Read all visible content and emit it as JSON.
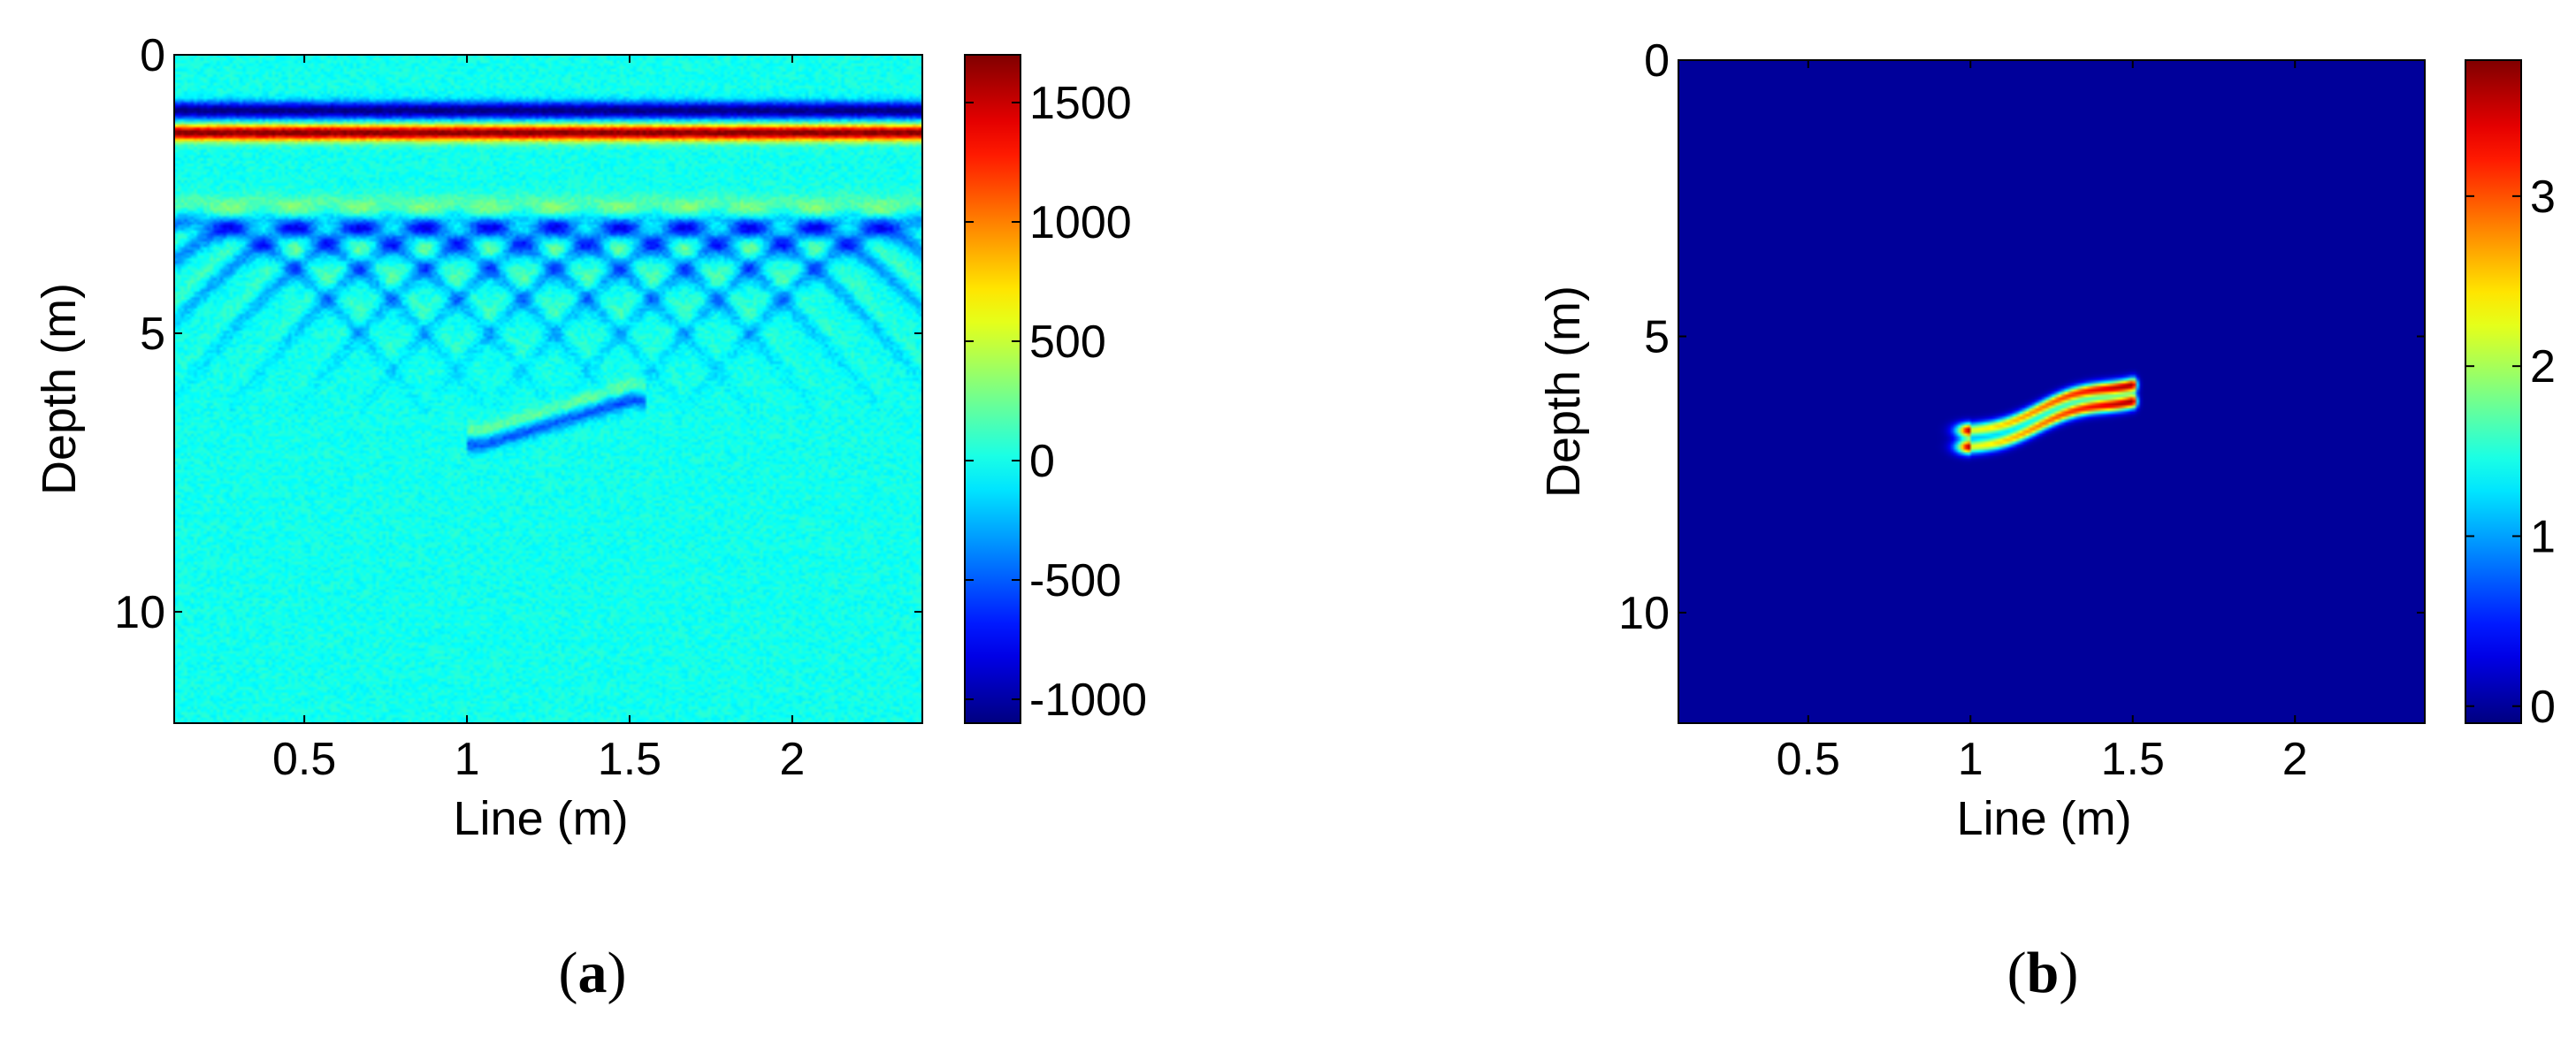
{
  "chart_data": [
    {
      "type": "heatmap",
      "panel_label": "a",
      "xlabel": "Line (m)",
      "ylabel": "Depth (m)",
      "xlim": [
        0.1,
        2.4
      ],
      "ylim": [
        0,
        12
      ],
      "y_direction": "down",
      "x_ticks": [
        "0.5",
        "1",
        "1.5",
        "2"
      ],
      "x_tick_values": [
        0.5,
        1,
        1.5,
        2
      ],
      "y_ticks": [
        "0",
        "5",
        "10"
      ],
      "y_tick_values": [
        0,
        5,
        10
      ],
      "colormap": "jet",
      "colorbar": {
        "range": [
          -1100,
          1700
        ],
        "ticks": [
          "1500",
          "1000",
          "500",
          "0",
          "-500",
          "-1000"
        ],
        "tick_values": [
          1500,
          1000,
          500,
          0,
          -500,
          -1000
        ]
      },
      "features": {
        "direct_wave_negative_depth": 1.0,
        "direct_wave_positive_depth": 1.4,
        "hyperbola_apex_depth": 3.0,
        "hyperbola_apex_lines": [
          0.17,
          0.37,
          0.57,
          0.77,
          0.97,
          1.17,
          1.37,
          1.57,
          1.77,
          1.97,
          2.17,
          2.37
        ],
        "target_reflection": [
          [
            1.05,
            7.0
          ],
          [
            1.3,
            6.6
          ],
          [
            1.5,
            6.2
          ]
        ]
      }
    },
    {
      "type": "heatmap",
      "panel_label": "b",
      "xlabel": "Line (m)",
      "ylabel": "Depth (m)",
      "xlim": [
        0.1,
        2.4
      ],
      "ylim": [
        0,
        12
      ],
      "y_direction": "down",
      "x_ticks": [
        "0.5",
        "1",
        "1.5",
        "2"
      ],
      "x_tick_values": [
        0.5,
        1,
        1.5,
        2
      ],
      "y_ticks": [
        "0",
        "5",
        "10"
      ],
      "y_tick_values": [
        0,
        5,
        10
      ],
      "colormap": "jet",
      "colorbar": {
        "range": [
          -0.1,
          3.8
        ],
        "ticks": [
          "3",
          "2",
          "1",
          "0"
        ],
        "tick_values": [
          3,
          2,
          1,
          0
        ]
      },
      "features": {
        "target_band_1": [
          [
            1.0,
            7.0
          ],
          [
            1.25,
            6.55
          ],
          [
            1.5,
            6.1
          ]
        ],
        "target_band_2": [
          [
            1.0,
            6.7
          ],
          [
            1.25,
            6.25
          ],
          [
            1.5,
            5.8
          ]
        ],
        "peak_value": 3.7,
        "peak_location": [
          1.5,
          5.8
        ]
      }
    }
  ]
}
